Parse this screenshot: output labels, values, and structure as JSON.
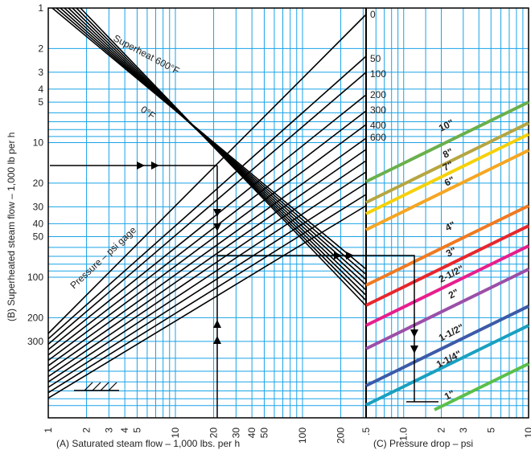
{
  "chart_data": {
    "type": "nomogram",
    "ylabel": "(B) Superheated steam flow – 1,000 lb per h",
    "y_ticks": [
      "1",
      "2",
      "3",
      "4",
      "5",
      "10",
      "20",
      "30",
      "40",
      "50",
      "100",
      "200",
      "300"
    ],
    "x_left_label": "(A) Saturated steam flow – 1,000 lbs. per h",
    "x_left_ticks": [
      "1",
      "2",
      "3",
      "4",
      "5",
      "10",
      "20",
      "30",
      "40",
      "50",
      "100",
      "200"
    ],
    "x_right_label": "(C) Pressure drop – psi",
    "x_right_ticks": [
      ".5",
      "1.0",
      "2",
      "3",
      "5",
      "10"
    ],
    "pressure_scale": [
      "0",
      "50",
      "100",
      "200",
      "300",
      "400",
      "600"
    ],
    "annotations": {
      "superheat": "Superheat 600°F",
      "zero_f": "0°F",
      "pressure": "Pressure – psi gage"
    },
    "pipe_sizes": [
      {
        "label": "10\"",
        "color": "#6ab04c"
      },
      {
        "label": "8\"",
        "color": "#b5a642"
      },
      {
        "label": "7\"",
        "color": "#f5d10a"
      },
      {
        "label": "6\"",
        "color": "#f5a623"
      },
      {
        "label": "4\"",
        "color": "#f07a22"
      },
      {
        "label": "3\"",
        "color": "#e8262d"
      },
      {
        "label": "2-1/2\"",
        "color": "#e81e8c"
      },
      {
        "label": "2\"",
        "color": "#9b4fa8"
      },
      {
        "label": "1-1/2\"",
        "color": "#3c5aa8"
      },
      {
        "label": "1-1/4\"",
        "color": "#1aa0c0"
      },
      {
        "label": "1\"",
        "color": "#5bbf4b"
      }
    ],
    "colors": {
      "grid": "#1aa3e8",
      "lines": "#000000",
      "background": "#ffffff"
    }
  }
}
